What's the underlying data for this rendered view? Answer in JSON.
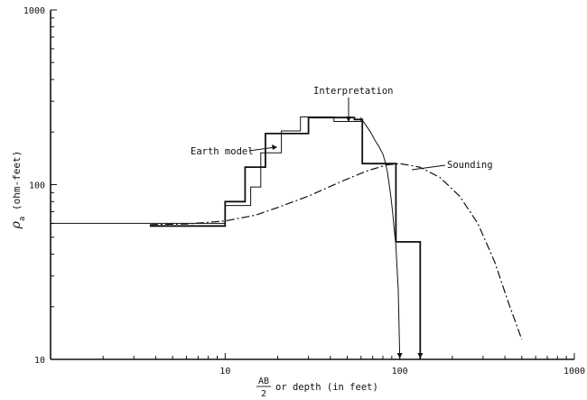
{
  "chart_data": {
    "type": "line",
    "xscale": "log",
    "yscale": "log",
    "xlim": [
      1,
      1000
    ],
    "ylim": [
      10,
      1000
    ],
    "x_ticks": [
      10,
      100,
      1000
    ],
    "x_tick_labels": [
      "10",
      "100",
      "1000"
    ],
    "y_ticks": [
      10,
      100,
      1000
    ],
    "y_tick_labels": [
      "10",
      "100",
      "1000"
    ],
    "xlabel": {
      "fraction_numerator": "AB",
      "fraction_denominator": "2",
      "text": "or depth (in feet)"
    },
    "ylabel": {
      "symbol": "ρ",
      "subscript": "a",
      "text": "(ohm-feet)"
    },
    "grid": false,
    "legend": "none",
    "annotations": [
      {
        "text": "Interpretation",
        "target": "interpretation"
      },
      {
        "text": "Earth model",
        "target": "earth_model"
      },
      {
        "text": "Sounding",
        "target": "sounding"
      }
    ],
    "series": [
      {
        "name": "Earth model",
        "key": "earth_model",
        "style": "step-thick",
        "points": [
          [
            3.7,
            58
          ],
          [
            10,
            58
          ],
          [
            10,
            80
          ],
          [
            13,
            80
          ],
          [
            13,
            126
          ],
          [
            17,
            126
          ],
          [
            17,
            196
          ],
          [
            21,
            196
          ],
          [
            21,
            196
          ],
          [
            30,
            196
          ],
          [
            30,
            242
          ],
          [
            47,
            242
          ],
          [
            47,
            242
          ],
          [
            55,
            242
          ],
          [
            55,
            236
          ],
          [
            61,
            236
          ],
          [
            61,
            132
          ],
          [
            83,
            132
          ],
          [
            83,
            132
          ],
          [
            95,
            132
          ],
          [
            95,
            47
          ],
          [
            131,
            47
          ],
          [
            131,
            10
          ]
        ]
      },
      {
        "name": "Interpretation",
        "key": "interpretation",
        "style": "step-thin",
        "points": [
          [
            1,
            60
          ],
          [
            10,
            60
          ],
          [
            10,
            76
          ],
          [
            14,
            76
          ],
          [
            14,
            97
          ],
          [
            16,
            97
          ],
          [
            16,
            152
          ],
          [
            21,
            152
          ],
          [
            21,
            203
          ],
          [
            27,
            203
          ],
          [
            27,
            244
          ],
          [
            42,
            244
          ],
          [
            42,
            230
          ],
          [
            60,
            230
          ],
          [
            60,
            240
          ],
          [
            68,
            200
          ],
          [
            72,
            180
          ],
          [
            76,
            165
          ],
          [
            80,
            150
          ],
          [
            82,
            138
          ],
          [
            85,
            118
          ],
          [
            87,
            100
          ],
          [
            89,
            85
          ],
          [
            91,
            70
          ],
          [
            93,
            55
          ],
          [
            95,
            45
          ],
          [
            96,
            37
          ],
          [
            98,
            25
          ],
          [
            100,
            10
          ]
        ]
      },
      {
        "name": "Sounding",
        "key": "sounding",
        "style": "dash-dot",
        "points": [
          [
            3.7,
            59
          ],
          [
            6,
            59.5
          ],
          [
            10,
            62
          ],
          [
            15,
            67
          ],
          [
            20,
            74
          ],
          [
            30,
            86
          ],
          [
            45,
            103
          ],
          [
            65,
            120
          ],
          [
            85,
            130
          ],
          [
            100,
            132
          ],
          [
            130,
            126
          ],
          [
            170,
            110
          ],
          [
            220,
            86
          ],
          [
            280,
            60
          ],
          [
            350,
            36
          ],
          [
            420,
            21
          ],
          [
            500,
            13
          ]
        ]
      }
    ]
  }
}
